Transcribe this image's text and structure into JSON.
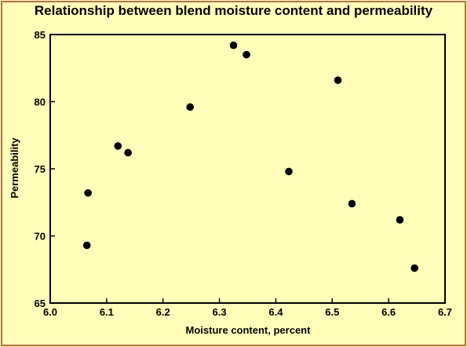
{
  "chart_data": {
    "type": "scatter",
    "title": "Relationship between blend moisture content and permeability",
    "xlabel": "Moisture content, percent",
    "ylabel": "Permeability",
    "xlim": [
      6.0,
      6.7
    ],
    "ylim": [
      65,
      85
    ],
    "xticks": [
      "6.0",
      "6.1",
      "6.2",
      "6.3",
      "6.4",
      "6.5",
      "6.6",
      "6.7"
    ],
    "yticks": [
      "65",
      "70",
      "75",
      "80",
      "85"
    ],
    "grid": false,
    "legend": "none",
    "marker_color": "#000000",
    "points": [
      {
        "x": 6.065,
        "y": 69.3
      },
      {
        "x": 6.067,
        "y": 73.2
      },
      {
        "x": 6.12,
        "y": 76.7
      },
      {
        "x": 6.138,
        "y": 76.2
      },
      {
        "x": 6.248,
        "y": 79.6
      },
      {
        "x": 6.325,
        "y": 84.2
      },
      {
        "x": 6.348,
        "y": 83.5
      },
      {
        "x": 6.423,
        "y": 74.8
      },
      {
        "x": 6.51,
        "y": 81.6
      },
      {
        "x": 6.535,
        "y": 72.4
      },
      {
        "x": 6.62,
        "y": 71.2
      },
      {
        "x": 6.646,
        "y": 67.6
      }
    ]
  }
}
